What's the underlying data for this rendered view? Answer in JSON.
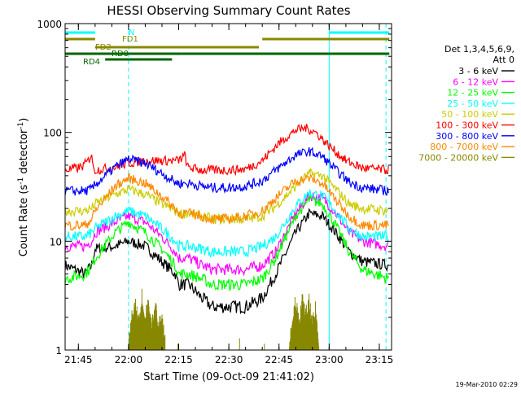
{
  "chart_data": {
    "type": "line",
    "title": "HESSI Observing Summary Count Rates",
    "xlabel": "Start Time (09-Oct-09 21:41:02)",
    "ylabel_main": "Count Rate (s",
    "ylabel_sup1": "-1",
    "ylabel_mid": " detector",
    "ylabel_sup2": "-1",
    "ylabel_end": ")",
    "ylim": [
      1,
      1000
    ],
    "yscale": "log",
    "xlim": [
      "21:41:02",
      "23:18:40"
    ],
    "x_ticks": [
      "21:45",
      "22:00",
      "22:15",
      "22:30",
      "22:45",
      "23:00",
      "23:15"
    ],
    "y_ticks": [
      "1",
      "10",
      "100",
      "1000"
    ],
    "legend_header": [
      "Det 1,3,4,5,6,9,",
      "Att 0"
    ],
    "legend_placement": "right",
    "series": [
      {
        "name": "3 - 6 keV",
        "color": "#000000",
        "points": [
          [
            "21:41",
            "6"
          ],
          [
            "21:47",
            "5"
          ],
          [
            "21:49",
            "6"
          ],
          [
            "21:50",
            "8.5"
          ],
          [
            "21:56",
            "9"
          ],
          [
            "22:00",
            "10"
          ],
          [
            "22:05",
            "9"
          ],
          [
            "22:10",
            "6.5"
          ],
          [
            "22:14",
            "5"
          ],
          [
            "22:15",
            "4"
          ],
          [
            "22:18",
            "4"
          ],
          [
            "22:22",
            "3"
          ],
          [
            "22:25",
            "2.5"
          ],
          [
            "22:30",
            "2.5"
          ],
          [
            "22:35",
            "2.5"
          ],
          [
            "22:40",
            "3"
          ],
          [
            "22:44",
            "5"
          ],
          [
            "22:50",
            "12"
          ],
          [
            "22:54",
            "18"
          ],
          [
            "22:58",
            "17"
          ],
          [
            "23:02",
            "12"
          ],
          [
            "23:06",
            "8"
          ],
          [
            "23:10",
            "6.5"
          ],
          [
            "23:18",
            "6"
          ]
        ]
      },
      {
        "name": "6 - 12 keV",
        "color": "#ff00ff",
        "points": [
          [
            "21:41",
            "9"
          ],
          [
            "21:47",
            "9"
          ],
          [
            "21:49",
            "10"
          ],
          [
            "21:50",
            "12"
          ],
          [
            "21:56",
            "15"
          ],
          [
            "22:00",
            "17"
          ],
          [
            "22:05",
            "15"
          ],
          [
            "22:10",
            "11"
          ],
          [
            "22:14",
            "8"
          ],
          [
            "22:15",
            "7"
          ],
          [
            "22:18",
            "7"
          ],
          [
            "22:22",
            "6"
          ],
          [
            "22:25",
            "5.5"
          ],
          [
            "22:30",
            "5.5"
          ],
          [
            "22:35",
            "5.5"
          ],
          [
            "22:40",
            "6"
          ],
          [
            "22:44",
            "8"
          ],
          [
            "22:50",
            "18"
          ],
          [
            "22:54",
            "26"
          ],
          [
            "22:58",
            "25"
          ],
          [
            "23:02",
            "18"
          ],
          [
            "23:06",
            "12"
          ],
          [
            "23:10",
            "10"
          ],
          [
            "23:18",
            "9"
          ]
        ]
      },
      {
        "name": "12 - 25 keV",
        "color": "#00ff00",
        "points": [
          [
            "21:41",
            "4.5"
          ],
          [
            "21:47",
            "5"
          ],
          [
            "21:49",
            "6"
          ],
          [
            "21:50",
            "7"
          ],
          [
            "21:56",
            "12"
          ],
          [
            "22:00",
            "15"
          ],
          [
            "22:05",
            "12"
          ],
          [
            "22:10",
            "8.5"
          ],
          [
            "22:14",
            "6"
          ],
          [
            "22:15",
            "5"
          ],
          [
            "22:18",
            "5"
          ],
          [
            "22:22",
            "4.5"
          ],
          [
            "22:25",
            "4"
          ],
          [
            "22:30",
            "4"
          ],
          [
            "22:35",
            "4"
          ],
          [
            "22:40",
            "4.5"
          ],
          [
            "22:44",
            "7"
          ],
          [
            "22:50",
            "17"
          ],
          [
            "22:54",
            "24"
          ],
          [
            "22:58",
            "22"
          ],
          [
            "23:02",
            "14"
          ],
          [
            "23:06",
            "8"
          ],
          [
            "23:10",
            "5.5"
          ],
          [
            "23:18",
            "4.5"
          ]
        ]
      },
      {
        "name": "25 - 50 keV",
        "color": "#00ffff",
        "points": [
          [
            "21:41",
            "11"
          ],
          [
            "21:47",
            "11"
          ],
          [
            "21:49",
            "12"
          ],
          [
            "21:50",
            "13"
          ],
          [
            "21:56",
            "17"
          ],
          [
            "22:00",
            "19"
          ],
          [
            "22:05",
            "17"
          ],
          [
            "22:10",
            "13"
          ],
          [
            "22:14",
            "10"
          ],
          [
            "22:15",
            "9"
          ],
          [
            "22:18",
            "9"
          ],
          [
            "22:22",
            "8.5"
          ],
          [
            "22:25",
            "8"
          ],
          [
            "22:30",
            "8"
          ],
          [
            "22:35",
            "8"
          ],
          [
            "22:40",
            "9"
          ],
          [
            "22:44",
            "11"
          ],
          [
            "22:50",
            "21"
          ],
          [
            "22:54",
            "28"
          ],
          [
            "22:58",
            "26"
          ],
          [
            "23:02",
            "19"
          ],
          [
            "23:06",
            "13"
          ],
          [
            "23:10",
            "11"
          ],
          [
            "23:18",
            "11"
          ]
        ]
      },
      {
        "name": "50 - 100 keV",
        "color": "#cccc00",
        "points": [
          [
            "21:41",
            "19"
          ],
          [
            "21:47",
            "19"
          ],
          [
            "21:49",
            "20"
          ],
          [
            "21:50",
            "22"
          ],
          [
            "21:56",
            "27"
          ],
          [
            "22:00",
            "30"
          ],
          [
            "22:05",
            "27"
          ],
          [
            "22:10",
            "22"
          ],
          [
            "22:14",
            "19"
          ],
          [
            "22:15",
            "18"
          ],
          [
            "22:18",
            "18"
          ],
          [
            "22:22",
            "17"
          ],
          [
            "22:25",
            "16"
          ],
          [
            "22:30",
            "16"
          ],
          [
            "22:35",
            "16"
          ],
          [
            "22:40",
            "17"
          ],
          [
            "22:44",
            "21"
          ],
          [
            "22:50",
            "32"
          ],
          [
            "22:54",
            "42"
          ],
          [
            "22:58",
            "40"
          ],
          [
            "23:02",
            "30"
          ],
          [
            "23:06",
            "22"
          ],
          [
            "23:10",
            "20"
          ],
          [
            "23:18",
            "19"
          ]
        ]
      },
      {
        "name": "100 - 300 keV",
        "color": "#ff0000",
        "points": [
          [
            "21:41",
            "45"
          ],
          [
            "21:46",
            "48"
          ],
          [
            "21:48",
            "55"
          ],
          [
            "21:49",
            "65"
          ],
          [
            "21:49.5",
            "45"
          ],
          [
            "21:52",
            "46"
          ],
          [
            "21:56",
            "48"
          ],
          [
            "22:00",
            "52"
          ],
          [
            "22:05",
            "55"
          ],
          [
            "22:10",
            "55"
          ],
          [
            "22:15",
            "55"
          ],
          [
            "22:17",
            "62"
          ],
          [
            "22:17.5",
            "48"
          ],
          [
            "22:22",
            "45"
          ],
          [
            "22:30",
            "45"
          ],
          [
            "22:35",
            "46"
          ],
          [
            "22:40",
            "55"
          ],
          [
            "22:45",
            "80"
          ],
          [
            "22:50",
            "105"
          ],
          [
            "22:53",
            "110"
          ],
          [
            "22:56",
            "100"
          ],
          [
            "23:00",
            "75"
          ],
          [
            "23:05",
            "55"
          ],
          [
            "23:10",
            "47"
          ],
          [
            "23:18",
            "45"
          ]
        ]
      },
      {
        "name": "300 - 800 keV",
        "color": "#0000ff",
        "points": [
          [
            "21:41",
            "29"
          ],
          [
            "21:47",
            "29"
          ],
          [
            "21:49",
            "30"
          ],
          [
            "21:50",
            "33"
          ],
          [
            "21:56",
            "48"
          ],
          [
            "22:00",
            "57"
          ],
          [
            "22:05",
            "52"
          ],
          [
            "22:10",
            "42"
          ],
          [
            "22:14",
            "35"
          ],
          [
            "22:15",
            "34"
          ],
          [
            "22:18",
            "34"
          ],
          [
            "22:22",
            "32"
          ],
          [
            "22:25",
            "31"
          ],
          [
            "22:30",
            "31"
          ],
          [
            "22:35",
            "32"
          ],
          [
            "22:40",
            "36"
          ],
          [
            "22:44",
            "45"
          ],
          [
            "22:50",
            "62"
          ],
          [
            "22:54",
            "67"
          ],
          [
            "22:58",
            "60"
          ],
          [
            "23:02",
            "45"
          ],
          [
            "23:06",
            "35"
          ],
          [
            "23:10",
            "31"
          ],
          [
            "23:18",
            "29"
          ]
        ]
      },
      {
        "name": "800 - 7000 keV",
        "color": "#ff8800",
        "points": [
          [
            "21:41",
            "14"
          ],
          [
            "21:47",
            "14"
          ],
          [
            "21:49",
            "16"
          ],
          [
            "21:50",
            "19"
          ],
          [
            "21:56",
            "32"
          ],
          [
            "22:00",
            "38"
          ],
          [
            "22:05",
            "34"
          ],
          [
            "22:10",
            "26"
          ],
          [
            "22:14",
            "20"
          ],
          [
            "22:15",
            "18"
          ],
          [
            "22:18",
            "18"
          ],
          [
            "22:22",
            "17"
          ],
          [
            "22:25",
            "16"
          ],
          [
            "22:30",
            "16"
          ],
          [
            "22:35",
            "17"
          ],
          [
            "22:40",
            "19"
          ],
          [
            "22:44",
            "25"
          ],
          [
            "22:50",
            "36"
          ],
          [
            "22:54",
            "38"
          ],
          [
            "22:58",
            "34"
          ],
          [
            "23:02",
            "24"
          ],
          [
            "23:06",
            "17"
          ],
          [
            "23:10",
            "14"
          ],
          [
            "23:18",
            "14"
          ]
        ]
      },
      {
        "name": "7000 - 20000 keV",
        "color": "#888800",
        "points": [
          [
            "22:00",
            "1"
          ],
          [
            "22:01",
            "1.8"
          ],
          [
            "22:02",
            "2.5"
          ],
          [
            "22:03",
            "1.6"
          ],
          [
            "22:04",
            "2.8"
          ],
          [
            "22:05",
            "1.8"
          ],
          [
            "22:06",
            "2.5"
          ],
          [
            "22:07",
            "1.5"
          ],
          [
            "22:08",
            "2.6"
          ],
          [
            "22:09",
            "1.4"
          ],
          [
            "22:10",
            "2"
          ],
          [
            "22:11",
            "1"
          ],
          [
            "22:48",
            "1"
          ],
          [
            "22:49",
            "1.8"
          ],
          [
            "22:50",
            "2.5"
          ],
          [
            "22:51",
            "1.6"
          ],
          [
            "22:52",
            "2.6"
          ],
          [
            "22:53",
            "1.9"
          ],
          [
            "22:54",
            "2.5"
          ],
          [
            "22:55",
            "1.5"
          ],
          [
            "22:56",
            "2.2"
          ],
          [
            "22:57",
            "1"
          ]
        ]
      }
    ],
    "flag_bars": [
      {
        "label": "N",
        "color": "#00ffff",
        "segments": [
          [
            "21:41",
            "21:50"
          ],
          [
            "23:00",
            "23:18"
          ]
        ]
      },
      {
        "label": "FD1",
        "color": "#888800",
        "segments": [
          [
            "21:41",
            "21:50"
          ],
          [
            "22:40",
            "23:18"
          ]
        ]
      },
      {
        "label": "FD2",
        "color": "#888800",
        "segments": [
          [
            "21:50",
            "22:39"
          ]
        ]
      },
      {
        "label": "RD0",
        "color": "#006600",
        "segments": [
          [
            "21:41",
            "22:16"
          ],
          [
            "22:16",
            "23:18"
          ]
        ]
      },
      {
        "label": "RD4",
        "color": "#006600",
        "segments": [
          [
            "21:53",
            "22:13"
          ]
        ]
      }
    ],
    "vlines_solid": [
      "21:41",
      "23:00"
    ],
    "vlines_dashed": [
      "22:00",
      "23:17"
    ],
    "vline_color": "#00ffff",
    "timestamp": "19-Mar-2010 02:29"
  }
}
